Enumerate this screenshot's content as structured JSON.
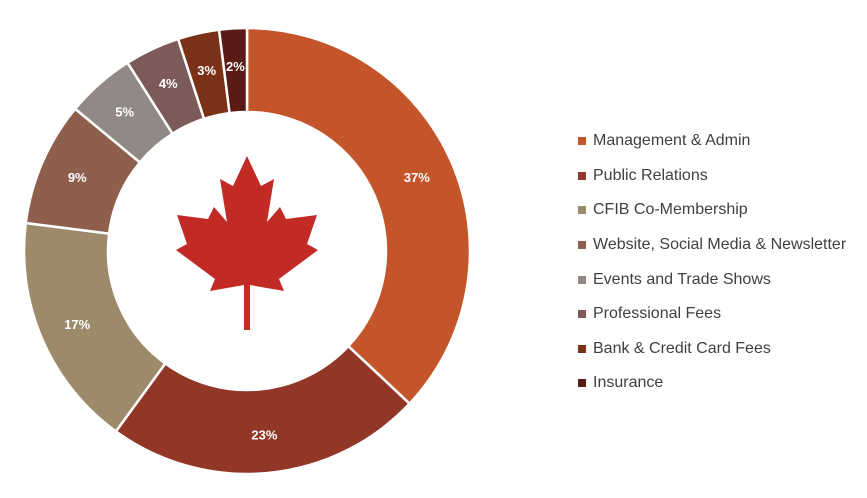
{
  "chart_data": {
    "type": "pie",
    "variant": "donut",
    "categories": [
      "Management & Admin",
      "Public Relations",
      "CFIB Co-Membership",
      "Website, Social Media & Newsletter",
      "Events and Trade Shows",
      "Professional Fees",
      "Bank & Credit Card Fees",
      "Insurance"
    ],
    "values": [
      37,
      23,
      17,
      9,
      5,
      4,
      3,
      2
    ],
    "data_labels": [
      "37%",
      "23%",
      "17%",
      "9%",
      "5%",
      "4%",
      "3%",
      "2%"
    ],
    "colors": [
      "#c4552b",
      "#923728",
      "#9c8a6a",
      "#8f5f4e",
      "#918985",
      "#7b5a58",
      "#7a3118",
      "#5a1a15"
    ],
    "legend_position": "right",
    "center_graphic": "maple-leaf-icon",
    "center_graphic_color": "#c22a26"
  }
}
